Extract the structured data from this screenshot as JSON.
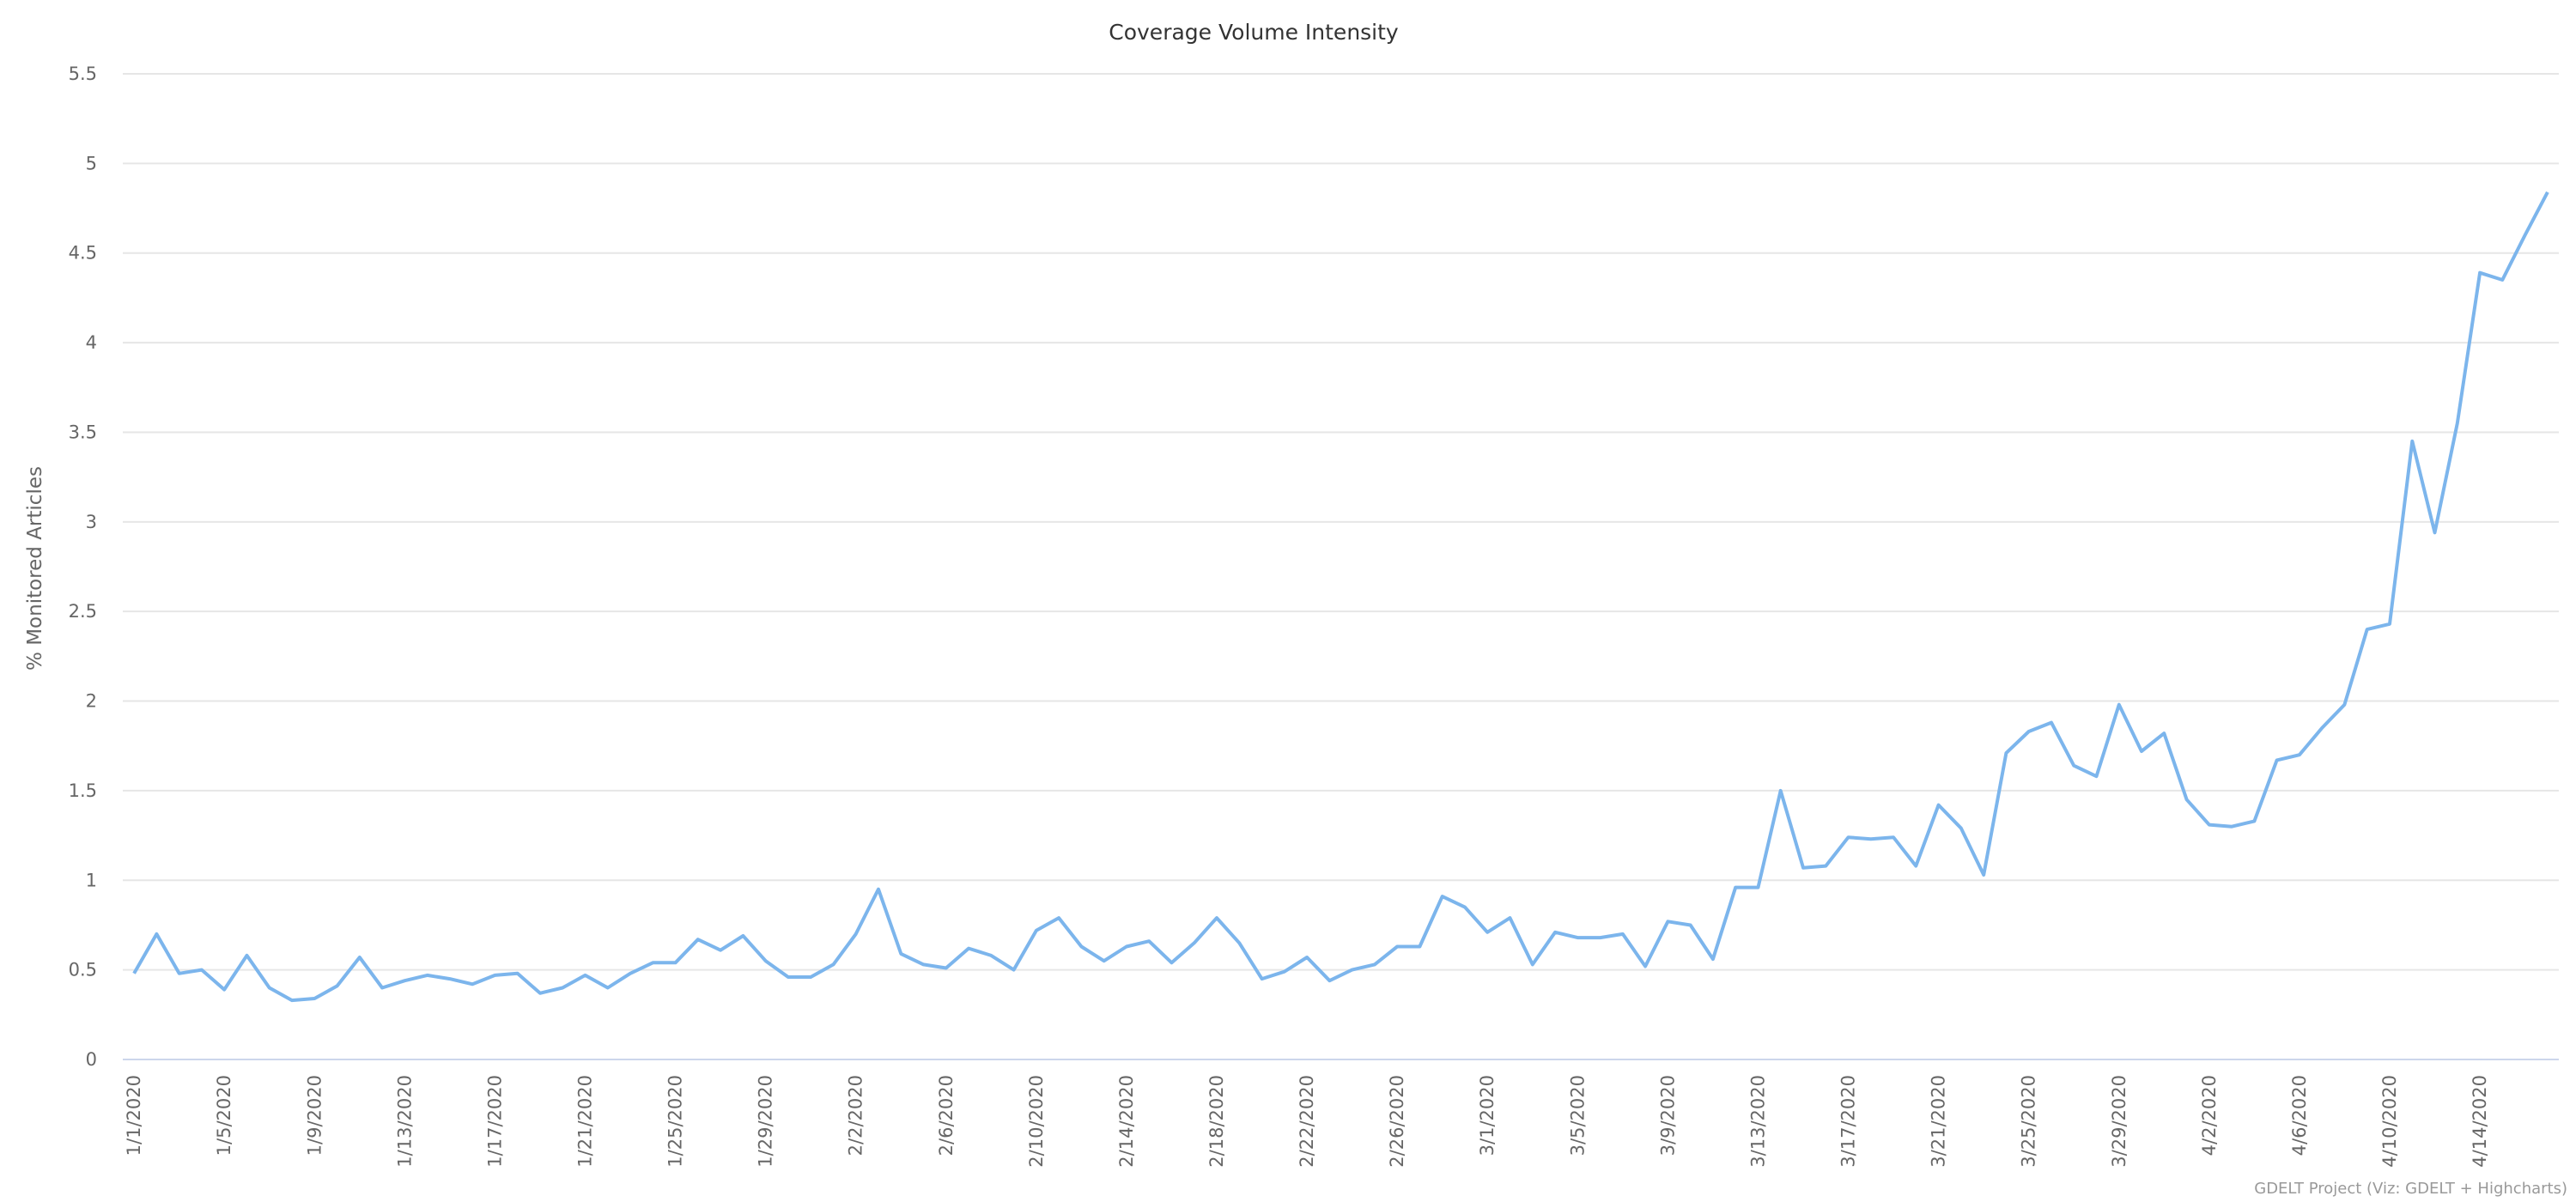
{
  "chart_data": {
    "type": "line",
    "title": "Coverage Volume Intensity",
    "y_label": "% Monitored Articles",
    "credit": "GDELT Project (Viz: GDELT + Highcharts)",
    "categories": [
      "1/1/2020",
      null,
      null,
      null,
      "1/5/2020",
      null,
      null,
      null,
      "1/9/2020",
      null,
      null,
      null,
      "1/13/2020",
      null,
      null,
      null,
      "1/17/2020",
      null,
      null,
      null,
      "1/21/2020",
      null,
      null,
      null,
      "1/25/2020",
      null,
      null,
      null,
      "1/29/2020",
      null,
      null,
      null,
      "2/2/2020",
      null,
      null,
      null,
      "2/6/2020",
      null,
      null,
      null,
      "2/10/2020",
      null,
      null,
      null,
      "2/14/2020",
      null,
      null,
      null,
      "2/18/2020",
      null,
      null,
      null,
      "2/22/2020",
      null,
      null,
      null,
      "2/26/2020",
      null,
      null,
      null,
      "3/1/2020",
      null,
      null,
      null,
      "3/5/2020",
      null,
      null,
      null,
      "3/9/2020",
      null,
      null,
      null,
      "3/13/2020",
      null,
      null,
      null,
      "3/17/2020",
      null,
      null,
      null,
      "3/21/2020",
      null,
      null,
      null,
      "3/25/2020",
      null,
      null,
      null,
      "3/29/2020",
      null,
      null,
      null,
      "4/2/2020",
      null,
      null,
      null,
      "4/6/2020",
      null,
      null,
      null,
      "4/10/2020",
      null,
      null,
      null,
      "4/14/2020",
      null,
      null,
      null
    ],
    "series": [
      {
        "color": "#7cb5ec",
        "values": [
          0.48,
          0.7,
          0.48,
          0.5,
          0.39,
          0.58,
          0.4,
          0.33,
          0.34,
          0.41,
          0.57,
          0.4,
          0.44,
          0.47,
          0.45,
          0.42,
          0.47,
          0.48,
          0.37,
          0.4,
          0.47,
          0.4,
          0.48,
          0.54,
          0.54,
          0.67,
          0.61,
          0.69,
          0.55,
          0.46,
          0.46,
          0.53,
          0.7,
          0.95,
          0.59,
          0.53,
          0.51,
          0.62,
          0.58,
          0.5,
          0.72,
          0.79,
          0.63,
          0.55,
          0.63,
          0.66,
          0.54,
          0.65,
          0.79,
          0.65,
          0.45,
          0.49,
          0.57,
          0.44,
          0.5,
          0.53,
          0.63,
          0.63,
          0.91,
          0.85,
          0.71,
          0.79,
          0.53,
          0.71,
          0.68,
          0.68,
          0.7,
          0.52,
          0.77,
          0.75,
          0.56,
          0.96,
          0.96,
          1.5,
          1.07,
          1.08,
          1.24,
          1.23,
          1.24,
          1.08,
          1.42,
          1.29,
          1.03,
          1.71,
          1.83,
          1.88,
          1.64,
          1.58,
          1.98,
          1.72,
          1.82,
          1.45,
          1.31,
          1.3,
          1.33,
          1.67,
          1.7,
          1.85,
          1.98,
          2.4,
          2.43,
          3.45,
          2.94,
          3.55,
          4.39,
          4.35,
          4.6,
          4.84
        ]
      }
    ],
    "ylim": [
      0,
      5.5
    ],
    "yticks": [
      0,
      0.5,
      1,
      1.5,
      2,
      2.5,
      3,
      3.5,
      4,
      4.5,
      5,
      5.5
    ],
    "grid": true
  }
}
